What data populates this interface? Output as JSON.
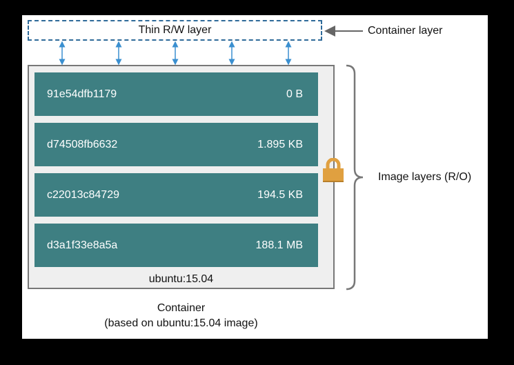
{
  "container_layer": {
    "box_label": "Thin R/W layer",
    "callout": "Container layer"
  },
  "image_layers": [
    {
      "id": "91e54dfb1179",
      "size": "0 B"
    },
    {
      "id": "d74508fb6632",
      "size": "1.895 KB"
    },
    {
      "id": "c22013c84729",
      "size": "194.5 KB"
    },
    {
      "id": "d3a1f33e8a5a",
      "size": "188.1 MB"
    }
  ],
  "image_name": "ubuntu:15.04",
  "image_layers_label": "Image layers (R/O)",
  "caption": {
    "line1": "Container",
    "line2": "(based on ubuntu:15.04 image)"
  },
  "colors": {
    "layer": "#3e7f82",
    "dashed_border": "#2e6a99",
    "arrows": "#3a8fd0",
    "lock": "#e0a040"
  },
  "icons": [
    "lock-icon",
    "double-arrow-icon",
    "brace-icon"
  ]
}
